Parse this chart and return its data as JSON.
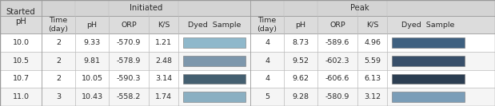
{
  "rows": [
    [
      "10.0",
      "2",
      "9.33",
      "-570.9",
      "1.21",
      "4",
      "8.73",
      "-589.6",
      "4.96"
    ],
    [
      "10.5",
      "2",
      "9.81",
      "-578.9",
      "2.48",
      "4",
      "9.52",
      "-602.3",
      "5.59"
    ],
    [
      "10.7",
      "2",
      "10.05",
      "-590.3",
      "3.14",
      "4",
      "9.62",
      "-606.6",
      "6.13"
    ],
    [
      "11.0",
      "3",
      "10.43",
      "-558.2",
      "1.74",
      "5",
      "9.28",
      "-580.9",
      "3.12"
    ]
  ],
  "initiated_swatch_colors": [
    "#8fb8cb",
    "#7d97ac",
    "#445f70",
    "#8aafc2"
  ],
  "peak_swatch_colors": [
    "#3e6080",
    "#384f6a",
    "#2c3e52",
    "#7a9db8"
  ],
  "header_bg": "#d4d4d4",
  "subheader_bg": "#dcdcdc",
  "row_bg_even": "#ffffff",
  "row_bg_odd": "#f5f5f5",
  "border_color": "#999999",
  "inner_border_color": "#bbbbbb",
  "text_color": "#2a2a2a",
  "font_size": 6.8,
  "header_font_size": 7.2
}
